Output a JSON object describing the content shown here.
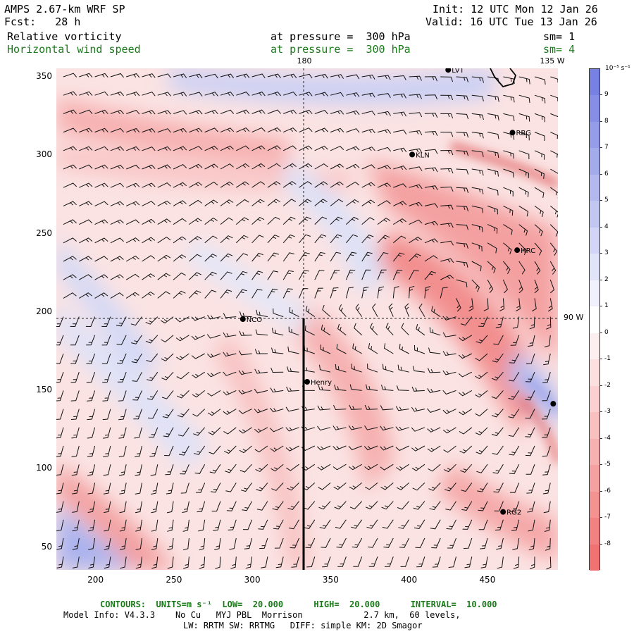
{
  "header": {
    "title": "AMPS 2.67-km WRF SP",
    "fcst": "Fcst:   28 h",
    "init": "Init: 12 UTC Mon 12 Jan 26",
    "valid": "Valid: 16 UTC Tue 13 Jan 26",
    "field1": "Relative vorticity",
    "field1_level": "at pressure =  300 hPa",
    "field1_sm": "sm= 1",
    "field2": "Horizontal wind speed",
    "field2_level": "at pressure =  300 hPa",
    "field2_sm": "sm= 4"
  },
  "axes": {
    "x_ticks": [
      "200",
      "250",
      "300",
      "350",
      "400",
      "450"
    ],
    "x_tick_values": [
      200,
      250,
      300,
      350,
      400,
      450
    ],
    "y_ticks": [
      "350",
      "300",
      "250",
      "200",
      "150",
      "100",
      "50"
    ],
    "y_tick_values": [
      350,
      300,
      250,
      200,
      150,
      100,
      50
    ],
    "x_range": [
      175,
      495
    ],
    "y_range": [
      35,
      355
    ],
    "top_label_180": "180",
    "top_label_135w": "135 W",
    "side_label_90w": "90 W"
  },
  "stations": [
    {
      "name": "LVT",
      "x": 425,
      "y": 354
    },
    {
      "name": "RBG",
      "x": 466,
      "y": 314
    },
    {
      "name": "KLN",
      "x": 402,
      "y": 300
    },
    {
      "name": "HRC",
      "x": 469,
      "y": 239
    },
    {
      "name": "NCO",
      "x": 294,
      "y": 195
    },
    {
      "name": "Henry",
      "x": 335,
      "y": 155
    },
    {
      "name": "RG2",
      "x": 460,
      "y": 72
    },
    {
      "name": "",
      "x": 492,
      "y": 141
    }
  ],
  "colorbar": {
    "units": "10⁻⁵ s⁻¹",
    "labels": [
      "9",
      "8",
      "7",
      "6",
      "5",
      "4",
      "3",
      "2",
      "1",
      "0",
      "-1",
      "-2",
      "-3",
      "-4",
      "-5",
      "-6",
      "-7",
      "-8"
    ],
    "positive_color": "#6f7ae0",
    "negative_color": "#f06a6a"
  },
  "footer": {
    "contours": "CONTOURS:  UNITS=m s⁻¹  LOW=  20.000      HIGH=  20.000      INTERVAL=  10.000",
    "model_info": "Model Info: V4.3.3    No Cu   MYJ PBL  Morrison            2.7 km,  60 levels,",
    "model_info2": "LW: RRTM SW: RRTMG   DIFF: simple KM: 2D Smagor"
  }
}
